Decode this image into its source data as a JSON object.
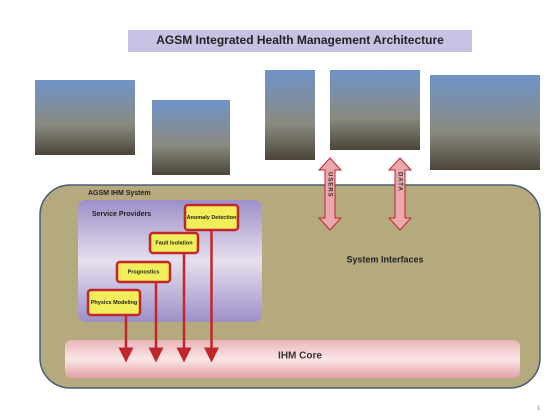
{
  "title": "AGSM Integrated Health Management Architecture",
  "system_label": "AGSM IHM System",
  "service_providers": {
    "label": "Service Providers",
    "services": [
      "Anomaly Detection",
      "Fault Isolation",
      "Prognostics",
      "Physics Modeling"
    ]
  },
  "interfaces": {
    "label": "System Interfaces",
    "arrows": [
      "USERS",
      "DATA"
    ]
  },
  "core_label": "IHM Core",
  "page_number": "1"
}
